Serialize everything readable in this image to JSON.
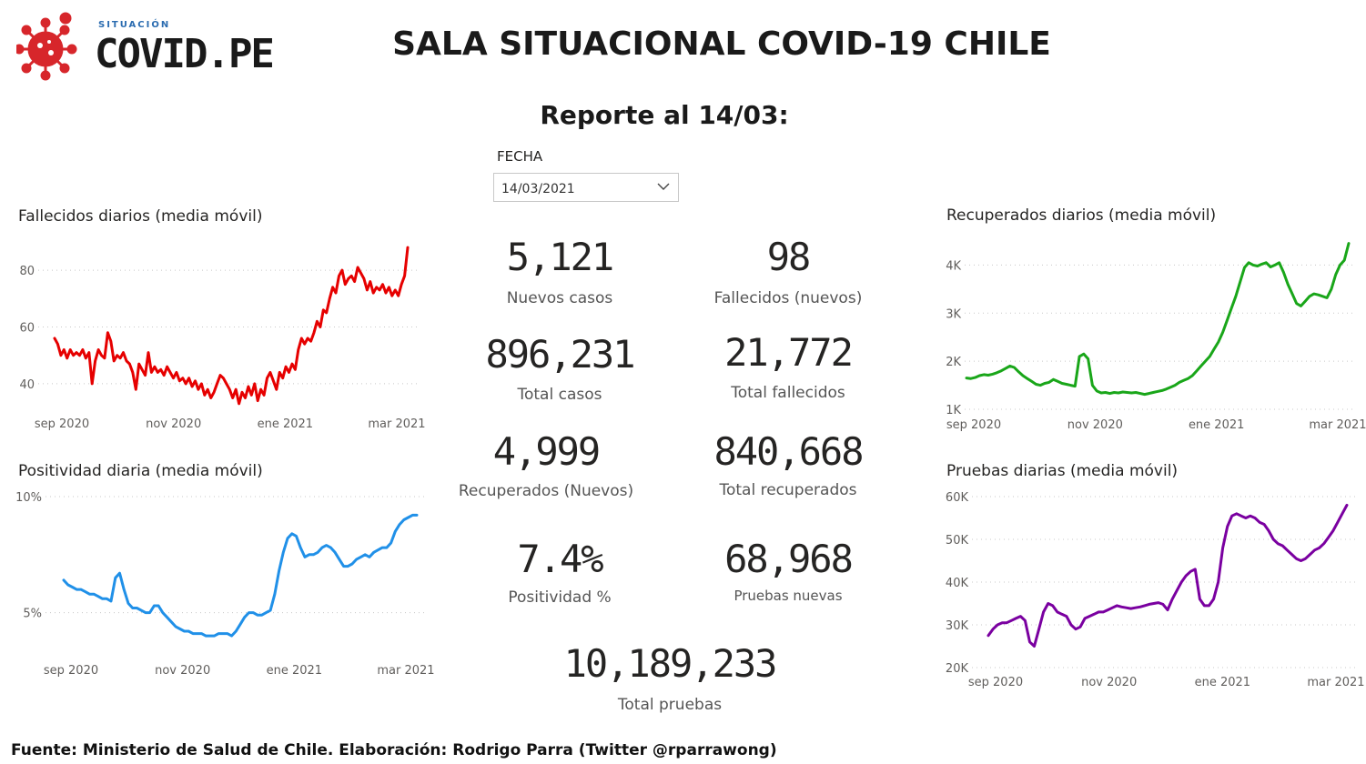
{
  "header": {
    "logo_small": "SITUACIÓN",
    "logo_brand": "COVID.PE",
    "title": "SALA SITUACIONAL COVID-19 CHILE",
    "subtitle": "Reporte al 14/03:"
  },
  "filter": {
    "label": "FECHA",
    "value": "14/03/2021"
  },
  "kpis": {
    "nuevos_casos": {
      "value": "5,121",
      "label": "Nuevos casos"
    },
    "fallecidos_nuevos": {
      "value": "98",
      "label": "Fallecidos (nuevos)"
    },
    "total_casos": {
      "value": "896,231",
      "label": "Total casos"
    },
    "total_fallecidos": {
      "value": "21,772",
      "label": "Total fallecidos"
    },
    "recuperados_nuevos": {
      "value": "4,999",
      "label": "Recuperados (Nuevos)"
    },
    "total_recuperados": {
      "value": "840,668",
      "label": "Total recuperados"
    },
    "positividad": {
      "value": "7.4%",
      "label": "Positividad %"
    },
    "pruebas_nuevas": {
      "value": "68,968",
      "label": "Pruebas nuevas"
    },
    "total_pruebas": {
      "value": "10,189,233",
      "label": "Total pruebas"
    }
  },
  "footer": "Fuente: Ministerio de Salud de Chile. Elaboración: Rodrigo Parra (Twitter @rparrawong)",
  "chart_data": [
    {
      "id": "fallecidos",
      "type": "line",
      "title": "Fallecidos diarios (media móvil)",
      "color": "#e60000",
      "x_ticks": [
        "sep 2020",
        "nov 2020",
        "ene 2021",
        "mar 2021"
      ],
      "y_ticks": [
        {
          "value": 40,
          "label": "40"
        },
        {
          "value": 60,
          "label": "60"
        },
        {
          "value": 80,
          "label": "80"
        }
      ],
      "ylim": [
        31,
        89
      ],
      "values": [
        56,
        54,
        50,
        52,
        49,
        52,
        50,
        51,
        50,
        52,
        49,
        51,
        40,
        48,
        52,
        50,
        49,
        58,
        55,
        48,
        50,
        49,
        51,
        48,
        47,
        44,
        38,
        47,
        45,
        43,
        51,
        44,
        46,
        44,
        45,
        43,
        46,
        44,
        42,
        44,
        41,
        42,
        40,
        42,
        39,
        41,
        38,
        40,
        36,
        38,
        35,
        37,
        40,
        43,
        42,
        40,
        38,
        35,
        38,
        33,
        37,
        35,
        39,
        36,
        40,
        34,
        38,
        36,
        42,
        44,
        41,
        38,
        44,
        42,
        46,
        44,
        47,
        45,
        52,
        56,
        54,
        56,
        55,
        58,
        62,
        60,
        66,
        65,
        70,
        74,
        72,
        78,
        80,
        75,
        77,
        78,
        76,
        81,
        79,
        77,
        73,
        76,
        72,
        74,
        73,
        75,
        72,
        74,
        71,
        73,
        71,
        75,
        78,
        88
      ]
    },
    {
      "id": "recuperados",
      "type": "line",
      "title": "Recuperados diarios (media móvil)",
      "color": "#19a619",
      "x_ticks": [
        "sep 2020",
        "nov 2020",
        "ene 2021",
        "mar 2021"
      ],
      "y_ticks": [
        {
          "value": 1000,
          "label": "1K"
        },
        {
          "value": 2000,
          "label": "2K"
        },
        {
          "value": 3000,
          "label": "3K"
        },
        {
          "value": 4000,
          "label": "4K"
        }
      ],
      "ylim": [
        1000,
        4500
      ],
      "values": [
        1650,
        1640,
        1660,
        1700,
        1720,
        1710,
        1730,
        1760,
        1800,
        1850,
        1900,
        1870,
        1780,
        1700,
        1640,
        1580,
        1520,
        1500,
        1540,
        1560,
        1620,
        1580,
        1540,
        1520,
        1500,
        1480,
        2100,
        2150,
        2050,
        1500,
        1380,
        1340,
        1350,
        1330,
        1350,
        1340,
        1360,
        1350,
        1340,
        1350,
        1330,
        1310,
        1330,
        1350,
        1370,
        1390,
        1420,
        1460,
        1500,
        1560,
        1600,
        1640,
        1700,
        1800,
        1900,
        2000,
        2100,
        2250,
        2400,
        2600,
        2850,
        3100,
        3350,
        3650,
        3950,
        4050,
        4000,
        3980,
        4020,
        4050,
        3960,
        4000,
        4050,
        3850,
        3600,
        3400,
        3200,
        3150,
        3250,
        3350,
        3400,
        3380,
        3350,
        3320,
        3500,
        3800,
        4000,
        4100,
        4450
      ]
    },
    {
      "id": "positividad",
      "type": "line",
      "title": "Positividad diaria (media móvil)",
      "color": "#2090e8",
      "x_ticks": [
        "sep 2020",
        "nov 2020",
        "ene 2021",
        "mar 2021"
      ],
      "y_ticks": [
        {
          "value": 5,
          "label": "5%"
        },
        {
          "value": 10,
          "label": "10%"
        }
      ],
      "ylim": [
        3.3,
        10.0
      ],
      "values": [
        6.4,
        6.2,
        6.1,
        6.0,
        6.0,
        5.9,
        5.8,
        5.8,
        5.7,
        5.6,
        5.6,
        5.5,
        6.5,
        6.7,
        6.0,
        5.4,
        5.2,
        5.2,
        5.1,
        5.0,
        5.0,
        5.3,
        5.3,
        5.0,
        4.8,
        4.6,
        4.4,
        4.3,
        4.2,
        4.2,
        4.1,
        4.1,
        4.1,
        4.0,
        4.0,
        4.0,
        4.1,
        4.1,
        4.1,
        4.0,
        4.2,
        4.5,
        4.8,
        5.0,
        5.0,
        4.9,
        4.9,
        5.0,
        5.1,
        5.8,
        6.8,
        7.6,
        8.2,
        8.4,
        8.3,
        7.8,
        7.4,
        7.5,
        7.5,
        7.6,
        7.8,
        7.9,
        7.8,
        7.6,
        7.3,
        7.0,
        7.0,
        7.1,
        7.3,
        7.4,
        7.5,
        7.4,
        7.6,
        7.7,
        7.8,
        7.8,
        8.0,
        8.5,
        8.8,
        9.0,
        9.1,
        9.2,
        9.2
      ]
    },
    {
      "id": "pruebas",
      "type": "line",
      "title": "Pruebas diarias (media móvil)",
      "color": "#7a00a0",
      "x_ticks": [
        "sep 2020",
        "nov 2020",
        "ene 2021",
        "mar 2021"
      ],
      "y_ticks": [
        {
          "value": 20000,
          "label": "20K"
        },
        {
          "value": 30000,
          "label": "30K"
        },
        {
          "value": 40000,
          "label": "40K"
        },
        {
          "value": 50000,
          "label": "50K"
        },
        {
          "value": 60000,
          "label": "60K"
        }
      ],
      "ylim": [
        20000,
        60000
      ],
      "values": [
        27500,
        29000,
        30000,
        30500,
        30500,
        31000,
        31500,
        32000,
        31000,
        26000,
        25000,
        29000,
        33000,
        35000,
        34500,
        33000,
        32500,
        32000,
        30000,
        29000,
        29500,
        31500,
        32000,
        32500,
        33000,
        33000,
        33500,
        34000,
        34500,
        34200,
        34000,
        33800,
        34000,
        34200,
        34500,
        34800,
        35000,
        35200,
        34800,
        33500,
        36000,
        38000,
        40000,
        41500,
        42500,
        43000,
        36000,
        34500,
        34500,
        36000,
        40000,
        48000,
        53000,
        55500,
        56000,
        55500,
        55000,
        55500,
        55000,
        54000,
        53500,
        52000,
        50000,
        49000,
        48500,
        47500,
        46500,
        45500,
        45000,
        45500,
        46500,
        47500,
        48000,
        49000,
        50500,
        52000,
        54000,
        56000,
        58000
      ]
    }
  ]
}
